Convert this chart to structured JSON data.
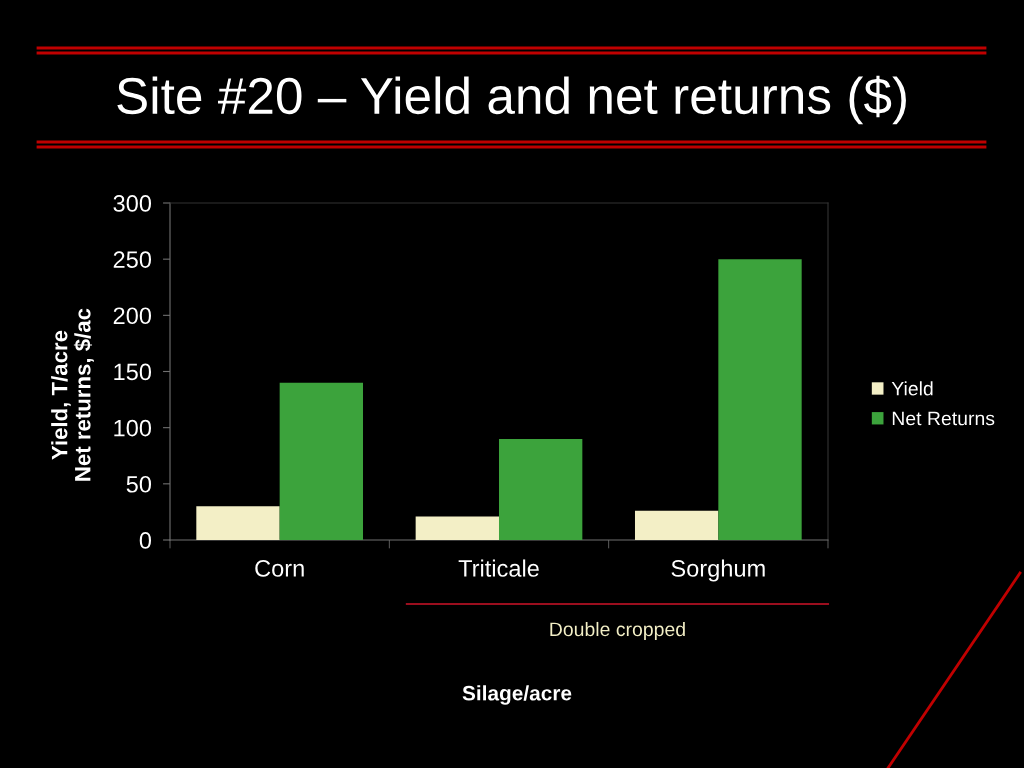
{
  "chart_data": {
    "type": "bar",
    "title": "Site #20 – Yield and net returns ($)",
    "ylabel": "Yield, T/acre\nNet returns, $/ac",
    "categories": [
      "Corn",
      "Triticale",
      "Sorghum"
    ],
    "series": [
      {
        "name": "Yield",
        "color": "#f3efc6",
        "values": [
          30,
          21,
          26
        ]
      },
      {
        "name": "Net Returns",
        "color": "#3ca33c",
        "values": [
          140,
          90,
          250
        ]
      }
    ],
    "ylim": [
      0,
      300
    ],
    "yticks": [
      0,
      50,
      100,
      150,
      200,
      250,
      300
    ],
    "legend": "right",
    "annotations": [
      "Double cropped",
      "Silage/acre"
    ]
  }
}
